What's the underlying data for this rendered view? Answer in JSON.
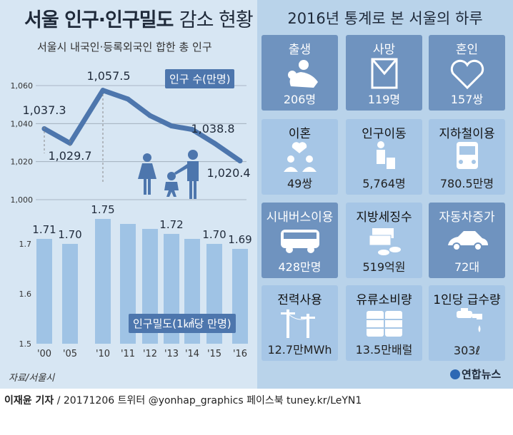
{
  "header": {
    "title_bold": "서울 인구·인구밀도",
    "title_light": "감소 현황",
    "subtitle": "서울시 내국인·등록외국인 합한 총 인구"
  },
  "right_panel": {
    "title": "2016년 통계로 본 서울의 하루",
    "cards": [
      {
        "label": "출생",
        "value": "206명",
        "icon": "baby-mother-icon",
        "style": "dark"
      },
      {
        "label": "사망",
        "value": "119명",
        "icon": "death-frame-icon",
        "style": "dark"
      },
      {
        "label": "혼인",
        "value": "157쌍",
        "icon": "heart-icon",
        "style": "dark"
      },
      {
        "label": "이혼",
        "value": "49쌍",
        "icon": "broken-heart-couple-icon",
        "style": "light"
      },
      {
        "label": "인구이동",
        "value": "5,764명",
        "icon": "person-luggage-icon",
        "style": "light"
      },
      {
        "label": "지하철이용",
        "value": "780.5만명",
        "icon": "subway-icon",
        "style": "light"
      },
      {
        "label": "시내버스이용",
        "value": "428만명",
        "icon": "bus-icon",
        "style": "dark"
      },
      {
        "label": "지방세징수",
        "value": "519억원",
        "icon": "money-coins-icon",
        "style": "light"
      },
      {
        "label": "자동차증가",
        "value": "72대",
        "icon": "car-icon",
        "style": "dark"
      },
      {
        "label": "전력사용",
        "value": "12.7만MWh",
        "icon": "power-pole-icon",
        "style": "light"
      },
      {
        "label": "유류소비량",
        "value": "13.5만배럴",
        "icon": "oil-barrels-icon",
        "style": "light"
      },
      {
        "label": "1인당 급수량",
        "value": "303ℓ",
        "icon": "water-tap-icon",
        "style": "light"
      }
    ]
  },
  "legend": {
    "population": "인구 수(만명)",
    "density": "인구밀도(1㎢당 만명)"
  },
  "footer": {
    "source": "자료/서울시",
    "logo": "연합뉴스",
    "reporter": "이재윤 기자",
    "credit_rest": " / 20171206   트위터 @yonhap_graphics  페이스북 tuney.kr/LeYN1"
  },
  "colors": {
    "background": "#d7e6f3",
    "line": "#4d76ad",
    "bar": "#9fc3e5",
    "dark_card": "#6f93bf",
    "light_card": "#a6c6e6"
  },
  "chart_data": [
    {
      "type": "line",
      "ylabel": "인구 수(만명)",
      "y_ticks": [
        "1,060",
        "1,040",
        "1,020",
        "1,000"
      ],
      "ylim": [
        1000,
        1065
      ],
      "x": [
        "'00",
        "'05",
        "'10",
        "'11",
        "'12",
        "'13",
        "'14",
        "'15",
        "'16"
      ],
      "values": [
        1037.3,
        1029.7,
        1057.5,
        1052.9,
        1044.2,
        1038.8,
        1036.9,
        1029.7,
        1020.4
      ],
      "data_labels": [
        {
          "index": 0,
          "text": "1,037.3"
        },
        {
          "index": 1,
          "text": "1,029.7"
        },
        {
          "index": 2,
          "text": "1,057.5"
        },
        {
          "index": 5,
          "text": "1,038.8"
        },
        {
          "index": 8,
          "text": "1,020.4"
        }
      ]
    },
    {
      "type": "bar",
      "ylabel": "인구밀도(1㎢당 만명)",
      "y_ticks": [
        "1.7",
        "1.6",
        "1.5"
      ],
      "ylim": [
        1.5,
        1.76
      ],
      "categories": [
        "'00",
        "'05",
        "'10",
        "'11",
        "'12",
        "'13",
        "'14",
        "'15",
        "'16"
      ],
      "values": [
        1.71,
        1.7,
        1.75,
        1.74,
        1.73,
        1.72,
        1.71,
        1.7,
        1.69
      ],
      "data_labels": [
        {
          "index": 0,
          "text": "1.71"
        },
        {
          "index": 1,
          "text": "1.70"
        },
        {
          "index": 2,
          "text": "1.75"
        },
        {
          "index": 5,
          "text": "1.72"
        },
        {
          "index": 7,
          "text": "1.70"
        },
        {
          "index": 8,
          "text": "1.69"
        }
      ]
    }
  ]
}
